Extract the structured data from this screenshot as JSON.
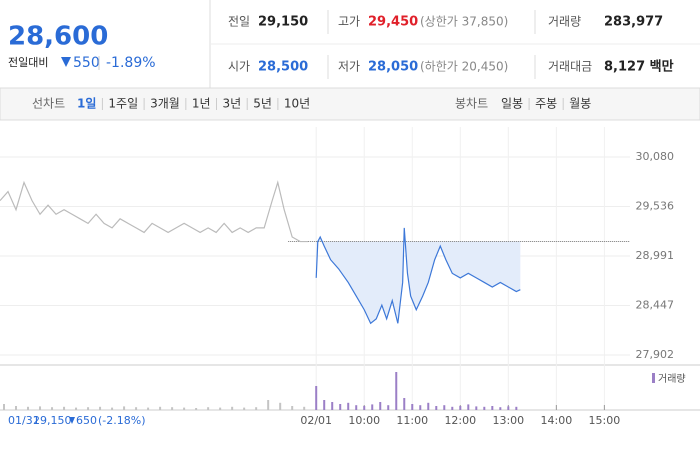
{
  "quote": {
    "price": "28,600",
    "change_label": "전일대비",
    "change": "550",
    "change_pct": "-1.89%",
    "stats": [
      {
        "label": "전일",
        "value": "29,150",
        "color": "#222222"
      },
      {
        "label": "고가",
        "value": "29,450",
        "color": "#e0202a",
        "note": "(상한가 37,850)"
      },
      {
        "label": "거래량",
        "value": "283,977",
        "color": "#222222"
      },
      {
        "label": "시가",
        "value": "28,500",
        "color": "#2a6bd6"
      },
      {
        "label": "저가",
        "value": "28,050",
        "color": "#2a6bd6",
        "note": "(하한가 20,450)"
      },
      {
        "label": "거래대금",
        "value": "8,127 백만",
        "color": "#222222"
      }
    ]
  },
  "tabs": {
    "line_label": "선차트",
    "line": [
      "1일",
      "1주일",
      "3개월",
      "1년",
      "3년",
      "5년",
      "10년"
    ],
    "candle_label": "봉차트",
    "candle": [
      "일봉",
      "주봉",
      "월봉"
    ]
  },
  "chart_data": {
    "type": "line",
    "series": [
      {
        "color": "#bbbbbb",
        "x": [
          -395,
          -385,
          -375,
          -365,
          -355,
          -345,
          -335,
          -325,
          -315,
          -305,
          -295,
          -285,
          -275,
          -265,
          -255,
          -245,
          -235,
          -225,
          -215,
          -205,
          -195,
          -185,
          -175,
          -165,
          -155,
          -145,
          -135,
          -125,
          -115,
          -105,
          -95,
          -85,
          -75,
          -65,
          -55,
          -48,
          -40,
          -30,
          -20,
          -10
        ],
        "values": [
          29600,
          29700,
          29500,
          29800,
          29600,
          29450,
          29550,
          29450,
          29500,
          29450,
          29400,
          29350,
          29450,
          29350,
          29300,
          29400,
          29350,
          29300,
          29250,
          29350,
          29300,
          29250,
          29300,
          29350,
          29300,
          29250,
          29300,
          29250,
          29350,
          29250,
          29300,
          29250,
          29300,
          29300,
          29600,
          29800,
          29500,
          29200,
          29150,
          29150
        ]
      },
      {
        "color": "#3d78d8",
        "x": [
          0,
          2,
          5,
          10,
          18,
          28,
          40,
          50,
          60,
          68,
          75,
          82,
          88,
          95,
          102,
          108,
          110,
          114,
          118,
          125,
          133,
          140,
          148,
          155,
          162,
          170,
          180,
          190,
          200,
          210,
          220,
          230,
          240,
          250,
          255
        ],
        "values": [
          28750,
          29150,
          29200,
          29100,
          28950,
          28850,
          28700,
          28550,
          28400,
          28250,
          28300,
          28450,
          28300,
          28500,
          28250,
          28700,
          29300,
          28800,
          28550,
          28400,
          28550,
          28700,
          28950,
          29100,
          28950,
          28800,
          28750,
          28800,
          28750,
          28700,
          28650,
          28700,
          28650,
          28600,
          28620
        ]
      }
    ],
    "prev_close": 29150,
    "xlim": [
      -395,
      392
    ],
    "xticks": [
      {
        "value": 0,
        "label": "02/01"
      },
      {
        "value": 60,
        "label": "10:00"
      },
      {
        "value": 120,
        "label": "11:00"
      },
      {
        "value": 180,
        "label": "12:00"
      },
      {
        "value": 240,
        "label": "13:00"
      },
      {
        "value": 300,
        "label": "14:00"
      },
      {
        "value": 360,
        "label": "15:00"
      }
    ],
    "ylim": [
      27902,
      30080
    ],
    "yticks": [
      {
        "value": 30080,
        "label": "30,080"
      },
      {
        "value": 29536,
        "label": "29,536"
      },
      {
        "value": 28991,
        "label": "28,991"
      },
      {
        "value": 28447,
        "label": "28,447"
      },
      {
        "value": 27902,
        "label": "27,902"
      }
    ],
    "volume": {
      "vlim": [
        0,
        100
      ],
      "series": [
        {
          "color": "#c4c4c4",
          "x": [
            -390,
            -375,
            -360,
            -345,
            -330,
            -315,
            -300,
            -285,
            -270,
            -255,
            -240,
            -225,
            -210,
            -195,
            -180,
            -165,
            -150,
            -135,
            -120,
            -105,
            -90,
            -75,
            -60,
            -45,
            -30,
            -15
          ],
          "values": [
            15,
            10,
            8,
            9,
            7,
            8,
            6,
            7,
            8,
            6,
            9,
            7,
            6,
            8,
            7,
            6,
            5,
            7,
            6,
            8,
            6,
            7,
            25,
            18,
            10,
            8
          ]
        },
        {
          "name": "거래량",
          "color": "#9b7fc6",
          "x": [
            0,
            10,
            20,
            30,
            40,
            50,
            60,
            70,
            80,
            90,
            100,
            110,
            120,
            130,
            140,
            150,
            160,
            170,
            180,
            190,
            200,
            210,
            220,
            230,
            240,
            250
          ],
          "values": [
            60,
            25,
            20,
            15,
            18,
            12,
            10,
            14,
            20,
            12,
            95,
            30,
            15,
            12,
            18,
            10,
            12,
            8,
            10,
            14,
            9,
            8,
            10,
            7,
            9,
            8
          ]
        }
      ]
    },
    "footer": {
      "date": "01/31",
      "close": "29,150",
      "change": "650",
      "change_pct": "(-2.18%)"
    }
  }
}
